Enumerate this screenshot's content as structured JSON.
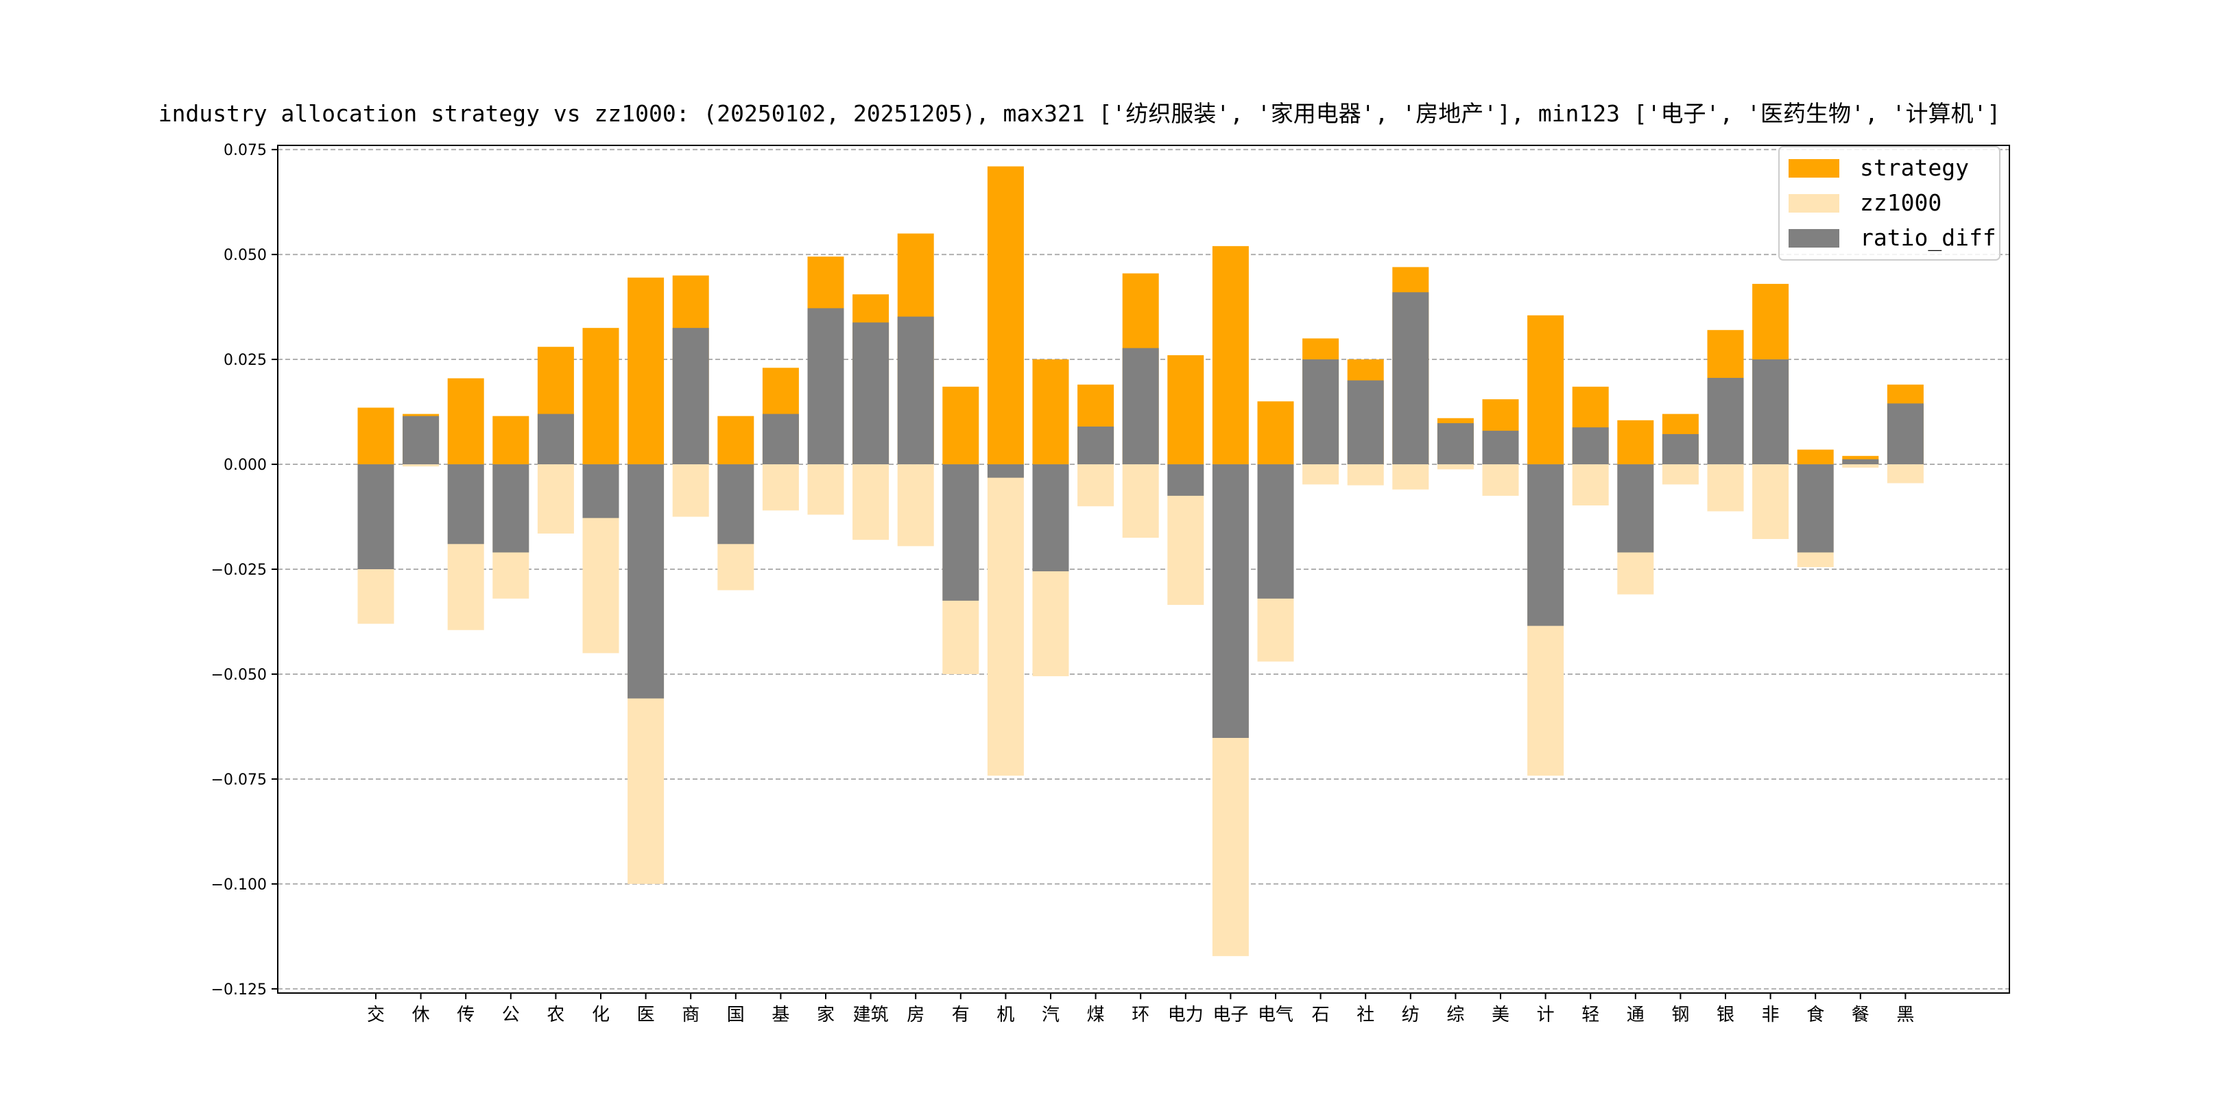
{
  "chart_data": {
    "type": "bar",
    "title": "industry allocation strategy vs zz1000: (20250102, 20251205), max321 ['纺织服装', '家用电器', '房地产'], min123 ['电子', '医药生物', '计算机']",
    "xlabel": "",
    "ylabel": "",
    "ylim": [
      -0.126,
      0.076
    ],
    "yticks": [
      0.075,
      0.05,
      0.025,
      0.0,
      -0.025,
      -0.05,
      -0.075,
      -0.1,
      -0.125
    ],
    "ytick_labels": [
      "0.075",
      "0.050",
      "0.025",
      "0.000",
      "−0.025",
      "−0.050",
      "−0.075",
      "−0.100",
      "−0.125"
    ],
    "grid": "horizontal dashed",
    "legend_position": "top-right",
    "categories": [
      "交",
      "休",
      "传",
      "公",
      "农",
      "化",
      "医",
      "商",
      "国",
      "基",
      "家",
      "建筑",
      "房",
      "有",
      "机",
      "汽",
      "煤",
      "环",
      "电力",
      "电子",
      "电气",
      "石",
      "社",
      "纺",
      "综",
      "美",
      "计",
      "轻",
      "通",
      "钢",
      "银",
      "非",
      "食",
      "餐",
      "黑"
    ],
    "series": [
      {
        "name": "strategy",
        "color": "#FFA500",
        "values": [
          0.0135,
          0.012,
          0.0205,
          0.0115,
          0.028,
          0.0325,
          0.0445,
          0.045,
          0.0115,
          0.023,
          0.0495,
          0.0405,
          0.055,
          0.0185,
          0.071,
          0.025,
          0.019,
          0.0455,
          0.026,
          0.052,
          0.015,
          0.03,
          0.025,
          0.047,
          0.011,
          0.0155,
          0.0355,
          0.0185,
          0.0105,
          0.012,
          0.032,
          0.043,
          0.0035,
          0.002,
          0.019
        ]
      },
      {
        "name": "zz1000",
        "color": "#FFE4B5",
        "values": [
          -0.038,
          -0.0005,
          -0.0395,
          -0.032,
          -0.0165,
          -0.045,
          -0.1,
          -0.0125,
          -0.03,
          -0.011,
          -0.012,
          -0.018,
          -0.0195,
          -0.05,
          -0.0742,
          -0.0505,
          -0.01,
          -0.0175,
          -0.0335,
          -0.1172,
          -0.047,
          -0.0048,
          -0.005,
          -0.006,
          -0.0012,
          -0.0075,
          -0.0742,
          -0.0098,
          -0.031,
          -0.0048,
          -0.0112,
          -0.0178,
          -0.0245,
          -0.0008,
          -0.0045
        ]
      },
      {
        "name": "ratio_diff",
        "color": "#808080",
        "values": [
          -0.025,
          0.0115,
          -0.019,
          -0.021,
          0.012,
          -0.0128,
          -0.0558,
          0.0325,
          -0.019,
          0.012,
          0.0372,
          0.0338,
          0.0352,
          -0.0325,
          -0.0032,
          -0.0255,
          0.009,
          0.0277,
          -0.0075,
          -0.0652,
          -0.032,
          0.025,
          0.02,
          0.041,
          0.0098,
          0.008,
          -0.0385,
          0.0088,
          -0.021,
          0.0072,
          0.0206,
          0.025,
          -0.021,
          0.0012,
          0.0145
        ]
      }
    ]
  }
}
